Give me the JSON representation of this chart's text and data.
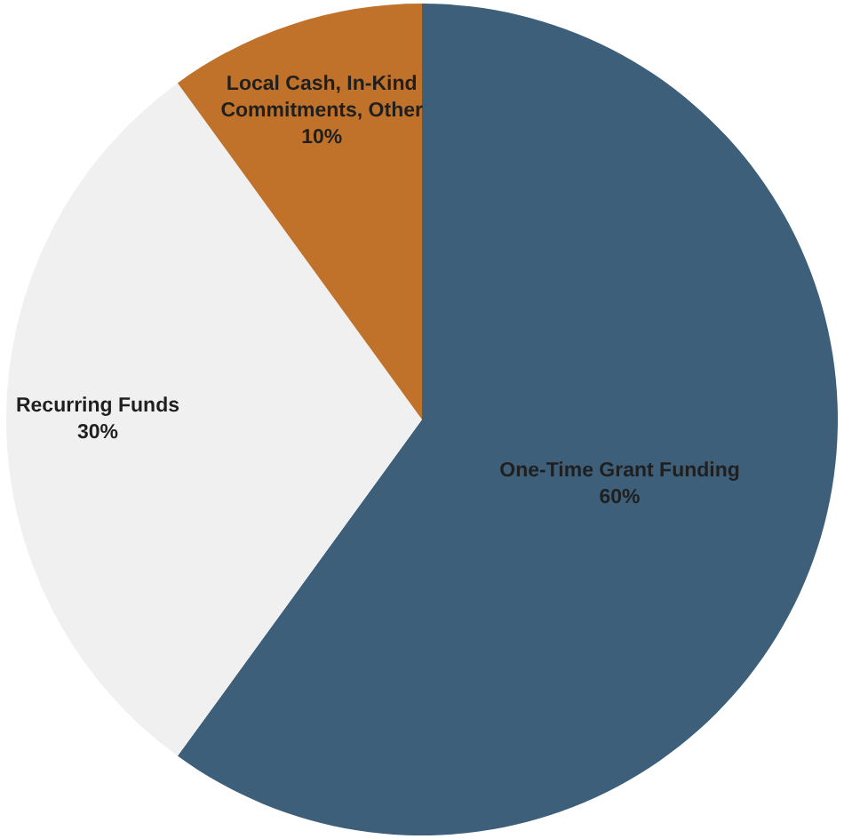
{
  "chart_data": {
    "type": "pie",
    "categories": [
      "One-Time Grant Funding",
      "Recurring Funds",
      "Local Cash, In-Kind Commitments, Other"
    ],
    "values": [
      60,
      30,
      10
    ],
    "colors": [
      "#3d5f7a",
      "#f0f0f0",
      "#c0722a"
    ],
    "value_labels": [
      "60%",
      "30%",
      "10%"
    ],
    "legend": false
  }
}
